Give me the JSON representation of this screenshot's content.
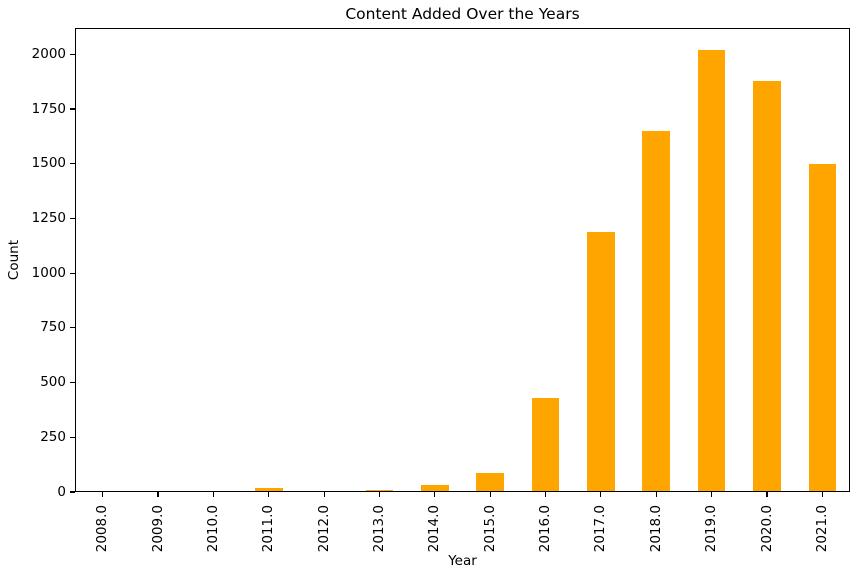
{
  "chart_data": {
    "type": "bar",
    "title": "Content Added Over the Years",
    "xlabel": "Year",
    "ylabel": "Count",
    "categories": [
      "2008.0",
      "2009.0",
      "2010.0",
      "2011.0",
      "2012.0",
      "2013.0",
      "2014.0",
      "2015.0",
      "2016.0",
      "2017.0",
      "2018.0",
      "2019.0",
      "2020.0",
      "2021.0"
    ],
    "values": [
      0,
      0,
      0,
      17,
      6,
      11,
      30,
      85,
      430,
      1188,
      1648,
      2018,
      1880,
      1500
    ],
    "yticks": [
      0,
      250,
      500,
      750,
      1000,
      1250,
      1500,
      1750,
      2000
    ],
    "ylim": [
      0,
      2120
    ],
    "bar_color": "#FFA500",
    "axis_color": "#000000",
    "background_color": "#ffffff",
    "grid": false,
    "legend": "none",
    "bar_width_fraction": 0.5,
    "xtick_label_rotation_deg": 90
  }
}
